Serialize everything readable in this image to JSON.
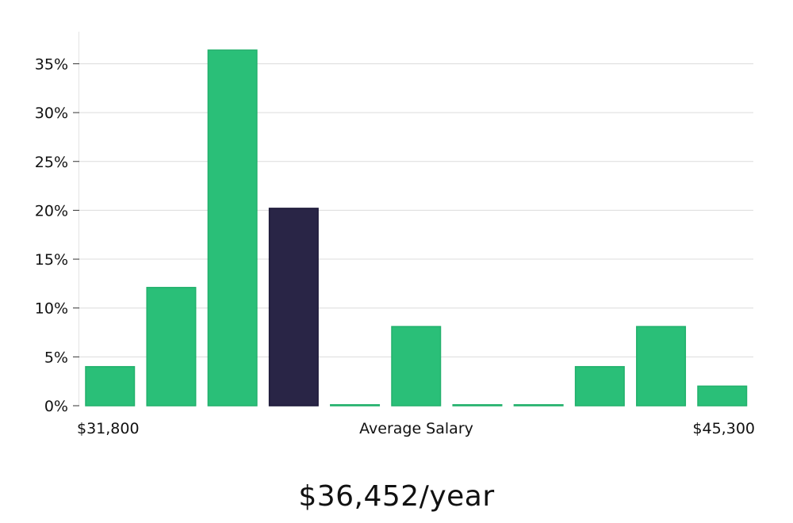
{
  "chart_data": {
    "type": "bar",
    "title": "",
    "xlabel": "Average Salary",
    "ylabel": "",
    "x_start_label": "$31,800",
    "x_end_label": "$45,300",
    "ylim": [
      0,
      38
    ],
    "yticks": [
      0,
      5,
      10,
      15,
      20,
      25,
      30,
      35
    ],
    "ytick_labels": [
      "0%",
      "5%",
      "10%",
      "15%",
      "20%",
      "25%",
      "30%",
      "35%"
    ],
    "values": [
      4,
      12.1,
      36.4,
      20.2,
      0.1,
      8.1,
      0.1,
      0.1,
      4,
      8.1,
      2
    ],
    "highlight_index": 3,
    "colors": {
      "bar": "#2abf78",
      "bar_edge": "#22b06c",
      "highlight": "#292546",
      "highlight_edge": "#1c1838"
    },
    "grid": true
  },
  "summary": {
    "salary_text": "$36,452/year"
  }
}
